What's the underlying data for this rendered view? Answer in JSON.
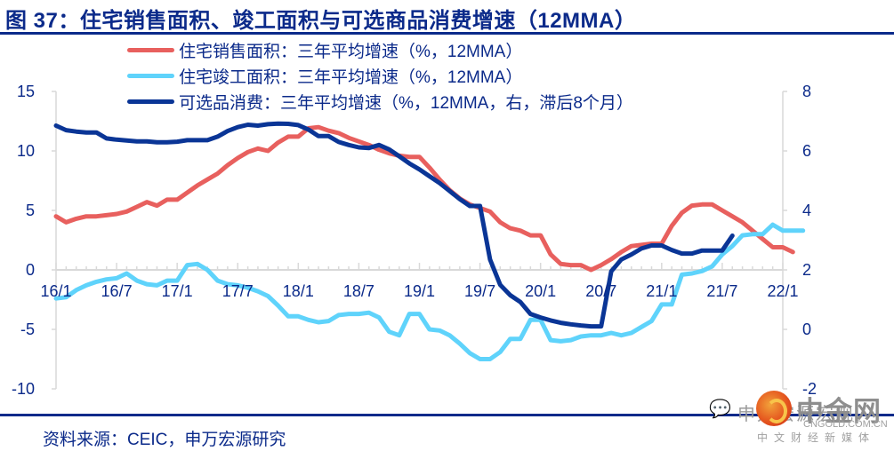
{
  "header": {
    "title": "图 37：住宅销售面积、竣工面积与可选商品消费增速（12MMA）"
  },
  "footer": {
    "source": "资料来源：CEIC，申万宏源研究"
  },
  "watermark": {
    "wechat_icon": "wechat-icon",
    "text": "申万宏源宏观",
    "brand": "中金网",
    "url": "CNGOLD.COM.CN",
    "subtitle": "中文财经新媒体"
  },
  "colors": {
    "sales": "#e8605e",
    "completion": "#5fd3fb",
    "consumption": "#0a3596",
    "text": "#0b2a8a",
    "axis": "#d9d9d9"
  },
  "chart_data": {
    "type": "line",
    "title": "图 37：住宅销售面积、竣工面积与可选商品消费增速（12MMA）",
    "xlabel": "",
    "ylabel_left": "",
    "ylabel_right": "",
    "x_start": "2016-01",
    "x_end": "2022-01",
    "x_ticks": [
      "16/1",
      "16/7",
      "17/1",
      "17/7",
      "18/1",
      "18/7",
      "19/1",
      "19/7",
      "20/1",
      "20/7",
      "21/1",
      "21/7",
      "22/1"
    ],
    "y_left_ticks": [
      "15",
      "10",
      "5",
      "0",
      "-5",
      "-10"
    ],
    "y_right_ticks": [
      "8",
      "6",
      "4",
      "2",
      "0",
      "-2"
    ],
    "ylim_left": [
      -10,
      15
    ],
    "ylim_right": [
      -2,
      8
    ],
    "grid": false,
    "legend_position": "top-center",
    "series": [
      {
        "name": "住宅销售面积：三年平均增速（%，12MMA）",
        "axis": "left",
        "color_key": "sales",
        "start_month": 0,
        "values": [
          4.5,
          4.0,
          4.3,
          4.5,
          4.5,
          4.6,
          4.7,
          4.9,
          5.3,
          5.7,
          5.4,
          5.9,
          5.9,
          6.5,
          7.1,
          7.6,
          8.1,
          8.8,
          9.4,
          9.9,
          10.2,
          10.0,
          10.7,
          11.2,
          11.2,
          11.9,
          12.0,
          11.7,
          11.5,
          11.1,
          10.8,
          10.5,
          10.1,
          9.8,
          9.6,
          9.5,
          9.5,
          8.6,
          7.6,
          6.7,
          6.0,
          5.5,
          5.2,
          4.9,
          4.0,
          3.5,
          3.3,
          2.9,
          2.9,
          1.3,
          0.5,
          0.4,
          0.4,
          0.0,
          0.4,
          0.9,
          1.5,
          2.0,
          2.1,
          2.2,
          2.2,
          3.7,
          4.8,
          5.4,
          5.5,
          5.5,
          5.0,
          4.5,
          4.0,
          3.3,
          2.6,
          1.9,
          1.9,
          1.5
        ]
      },
      {
        "name": "住宅竣工面积：三年平均增速（%，12MMA）",
        "axis": "left",
        "color_key": "completion",
        "start_month": 0,
        "values": [
          -2.4,
          -2.3,
          -1.7,
          -1.3,
          -1.0,
          -0.8,
          -0.7,
          -0.3,
          -0.9,
          -1.2,
          -1.3,
          -0.9,
          -0.9,
          0.4,
          0.5,
          0.0,
          -0.9,
          -1.2,
          -1.3,
          -1.5,
          -1.8,
          -2.2,
          -3.0,
          -3.9,
          -3.9,
          -4.2,
          -4.4,
          -4.3,
          -3.8,
          -3.7,
          -3.7,
          -3.6,
          -4.0,
          -5.2,
          -5.5,
          -3.7,
          -3.7,
          -5.0,
          -5.1,
          -5.5,
          -6.2,
          -7.0,
          -7.5,
          -7.5,
          -6.9,
          -5.8,
          -5.8,
          -4.2,
          -4.2,
          -5.9,
          -6.0,
          -5.9,
          -5.6,
          -5.5,
          -5.5,
          -5.3,
          -5.5,
          -5.3,
          -4.8,
          -4.3,
          -2.9,
          -2.9,
          -0.4,
          -0.3,
          -0.1,
          0.3,
          1.3,
          2.0,
          2.9,
          3.0,
          3.0,
          3.8,
          3.3,
          3.3,
          3.3
        ]
      },
      {
        "name": "可选品消费：三年平均增速（%，12MMA，右，滞后8个月）",
        "axis": "right",
        "color_key": "consumption",
        "start_month": 0,
        "values": [
          6.85,
          6.7,
          6.65,
          6.62,
          6.62,
          6.42,
          6.38,
          6.35,
          6.32,
          6.32,
          6.29,
          6.29,
          6.31,
          6.36,
          6.36,
          6.36,
          6.48,
          6.67,
          6.8,
          6.88,
          6.85,
          6.9,
          6.92,
          6.91,
          6.87,
          6.72,
          6.5,
          6.5,
          6.3,
          6.2,
          6.12,
          6.1,
          6.2,
          6.05,
          5.82,
          5.58,
          5.38,
          5.15,
          4.92,
          4.65,
          4.38,
          4.15,
          4.15,
          2.35,
          1.5,
          1.15,
          0.92,
          0.52,
          0.4,
          0.3,
          0.22,
          0.17,
          0.13,
          0.1,
          0.1,
          1.95,
          2.35,
          2.52,
          2.72,
          2.82,
          2.82,
          2.67,
          2.55,
          2.55,
          2.65,
          2.65,
          2.65,
          3.15
        ]
      }
    ]
  }
}
